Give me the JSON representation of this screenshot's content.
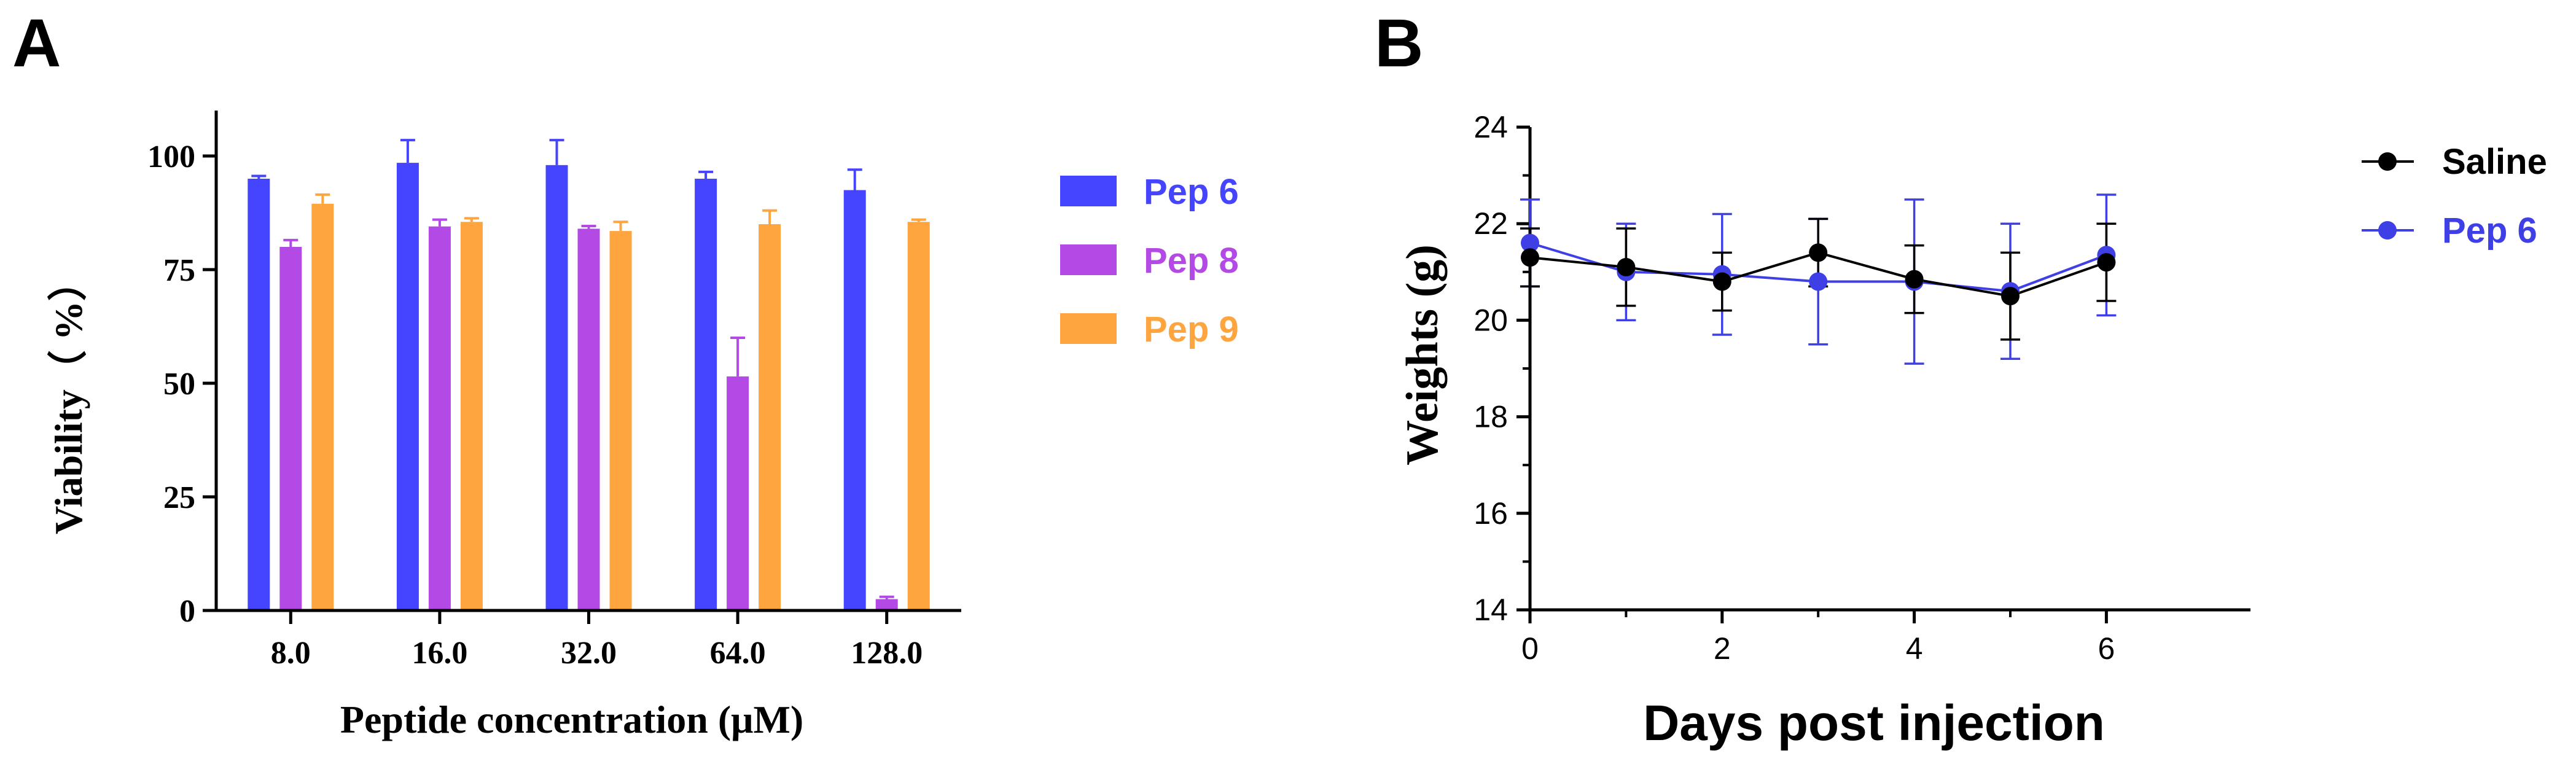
{
  "panels": {
    "a": "A",
    "b": "B"
  },
  "chart_data": [
    {
      "type": "bar",
      "title": "",
      "xlabel": "Peptide concentration (μM)",
      "ylabel": "Viability（ %）",
      "categories": [
        "8.0",
        "16.0",
        "32.0",
        "64.0",
        "128.0"
      ],
      "ylim": [
        0,
        110
      ],
      "yticks": [
        "0",
        "25",
        "50",
        "75",
        "100"
      ],
      "grid": false,
      "legend_position": "right",
      "series": [
        {
          "name": "Pep 6",
          "color": "#4545ff",
          "values": [
            95,
            98.5,
            98,
            95,
            92.5
          ],
          "errors": [
            0.6,
            5,
            5.5,
            1.5,
            4.5
          ]
        },
        {
          "name": "Pep 8",
          "color": "#b44ae6",
          "values": [
            80,
            84.5,
            84,
            51.5,
            2.5
          ],
          "errors": [
            1.5,
            1.5,
            0.6,
            8.5,
            0.5
          ]
        },
        {
          "name": "Pep 9",
          "color": "#ffa53f",
          "values": [
            89.5,
            85.5,
            83.5,
            85,
            85.5
          ],
          "errors": [
            2,
            0.8,
            2,
            3,
            0.5
          ]
        }
      ]
    },
    {
      "type": "line",
      "title": "",
      "xlabel": "Days post injection",
      "ylabel": "Weights (g)",
      "x": [
        0,
        1,
        2,
        3,
        4,
        5,
        6
      ],
      "xlim": [
        0,
        7.5
      ],
      "ylim": [
        14,
        24
      ],
      "xticks": [
        "0",
        "2",
        "4",
        "6"
      ],
      "yticks": [
        "14",
        "16",
        "18",
        "20",
        "22",
        "24"
      ],
      "grid": false,
      "legend_position": "top-right",
      "series": [
        {
          "name": "Saline",
          "color": "#000000",
          "values": [
            21.3,
            21.1,
            20.8,
            21.4,
            20.85,
            20.5,
            21.2
          ],
          "errors": [
            0.6,
            0.8,
            0.6,
            0.7,
            0.7,
            0.9,
            0.8
          ]
        },
        {
          "name": "Pep 6",
          "color": "#3f3fe6",
          "values": [
            21.6,
            21.0,
            20.95,
            20.8,
            20.8,
            20.6,
            21.35
          ],
          "errors": [
            0.9,
            1.0,
            1.25,
            1.3,
            1.7,
            1.4,
            1.25
          ]
        }
      ]
    }
  ]
}
